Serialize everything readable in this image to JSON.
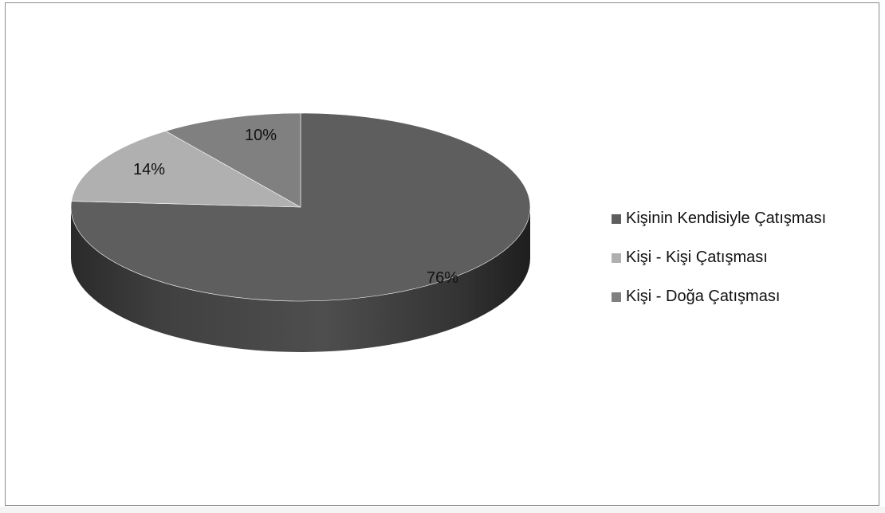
{
  "chart_data": {
    "type": "pie",
    "style": "3d",
    "categories": [
      "Kişinin Kendisiyle Çatışması",
      "Kişi - Kişi Çatışması",
      "Kişi - Doğa Çatışması"
    ],
    "values": [
      76,
      14,
      10
    ],
    "data_labels": [
      "76%",
      "14%",
      "10%"
    ],
    "colors": [
      "#5e5e5e",
      "#b0b0b0",
      "#808080"
    ],
    "legend_position": "right",
    "title": "",
    "start_angle_direction": "clockwise-from-top"
  },
  "legend": {
    "items": [
      {
        "label": "Kişinin Kendisiyle Çatışması",
        "color": "#5e5e5e"
      },
      {
        "label": "Kişi - Kişi Çatışması",
        "color": "#b0b0b0"
      },
      {
        "label": "Kişi - Doğa Çatışması",
        "color": "#808080"
      }
    ]
  }
}
